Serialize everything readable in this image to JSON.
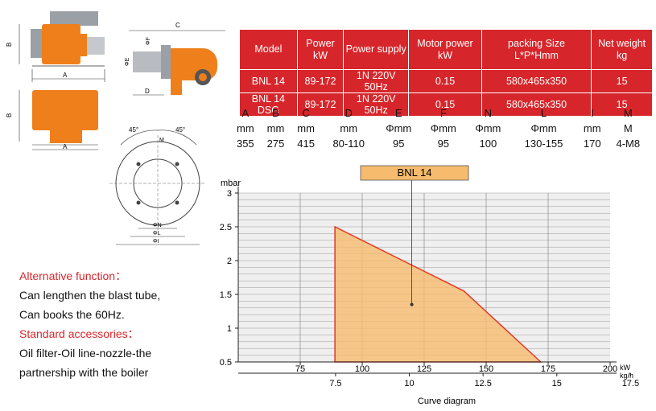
{
  "spec_table": {
    "headers": [
      "Model",
      "Power kW",
      "Power supply",
      "Motor power kW",
      "packing Size L*P*Hmm",
      "Net weight kg"
    ],
    "rows": [
      [
        "BNL 14",
        "89-172",
        "1N  220V  50Hz",
        "0.15",
        "580x465x350",
        "15"
      ],
      [
        "BNL 14 DSG",
        "89-172",
        "1N  220V  50Hz",
        "0.15",
        "580x465x350",
        "15"
      ]
    ]
  },
  "dimension_table": {
    "letters": [
      "A",
      "B",
      "C",
      "D",
      "E",
      "F",
      "N",
      "L",
      "I",
      "M"
    ],
    "units": [
      "mm",
      "mm",
      "mm",
      "mm",
      "Φmm",
      "Φmm",
      "Φmm",
      "Φmm",
      "mm",
      "M"
    ],
    "values": [
      "355",
      "275",
      "415",
      "80-110",
      "95",
      "95",
      "100",
      "130-155",
      "170",
      "4-M8"
    ]
  },
  "drawing_labels": {
    "a": "A",
    "b": "B",
    "c": "C",
    "d": "D",
    "e": "ΦE",
    "f": "ΦF",
    "m": "M",
    "n": "ΦN",
    "l": "ΦL",
    "i": "ΦI",
    "angle_left": "45°",
    "angle_right": "45°"
  },
  "notes": {
    "alt_title": "Alternative function：",
    "alt_line1": "Can lengthen the blast tube,",
    "alt_line2": "Can books the 60Hz.",
    "std_title": "Standard accessories：",
    "std_line1": "Oil filter-Oil line-nozzle-the",
    "std_line2": "partnership with the boiler"
  },
  "colors": {
    "red": "#d7262b",
    "orange": "#ef7f1a",
    "curve_fill": "#f6bb6d",
    "curve_line": "#e03a2c"
  },
  "chart_data": {
    "type": "area",
    "title": "BNL 14",
    "caption": "Curve diagram",
    "ylabel": "mbar",
    "x_unit_top": "kW",
    "x_unit_bottom": "kg/h",
    "ylim": [
      0.5,
      3
    ],
    "xlim": [
      50,
      200
    ],
    "x_ticks_kw": [
      "75",
      "100",
      "125",
      "150",
      "175",
      "200"
    ],
    "x_ticks_kgh": [
      "7.5",
      "10",
      "12.5",
      "15",
      "17.5"
    ],
    "y_ticks": [
      "0.5",
      "1",
      "1.5",
      "2",
      "2.5",
      "3"
    ],
    "grid": true,
    "series": [
      {
        "name": "BNL 14",
        "x": [
          89,
          89,
          141,
          172,
          89
        ],
        "y": [
          0.5,
          2.5,
          1.55,
          0.5,
          0.5
        ]
      }
    ]
  }
}
